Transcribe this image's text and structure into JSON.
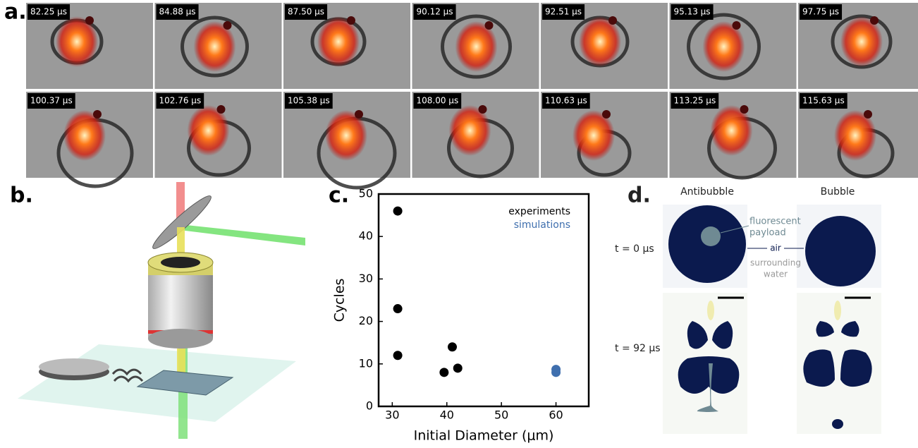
{
  "panels": {
    "a": {
      "label": "a.",
      "frames": [
        "82.25 µs",
        "84.88 µs",
        "87.50 µs",
        "90.12 µs",
        "92.51 µs",
        "95.13 µs",
        "97.75 µs",
        "100.37 µs",
        "102.76 µs",
        "105.38 µs",
        "108.00 µs",
        "110.63 µs",
        "113.25 µs",
        "115.63 µs"
      ]
    },
    "b": {
      "label": "b."
    },
    "c": {
      "label": "c."
    },
    "d": {
      "label": "d.",
      "antibubble": "Antibubble",
      "bubble": "Bubble",
      "t0": "t = 0 µs",
      "t92": "t = 92 µs",
      "payload": [
        "fluorescent",
        "payload"
      ],
      "air": "air",
      "water": [
        "surrounding",
        "water"
      ]
    }
  },
  "chart_data": {
    "type": "scatter",
    "xlabel": "Initial Diameter (μm)",
    "ylabel": "Cycles",
    "xlim": [
      27.5,
      66
    ],
    "ylim": [
      0,
      50
    ],
    "xticks": [
      30,
      40,
      50,
      60
    ],
    "yticks": [
      0,
      10,
      20,
      30,
      40,
      50
    ],
    "legend": "upper right",
    "series": [
      {
        "name": "experiments",
        "color": "#000000",
        "x": [
          31,
          31,
          31,
          39.5,
          41,
          42
        ],
        "values": [
          46,
          23,
          12,
          8,
          14,
          9
        ]
      },
      {
        "name": "simulations",
        "color": "#3f6fae",
        "x": [
          60,
          60
        ],
        "values": [
          8.7,
          8
        ]
      }
    ]
  }
}
